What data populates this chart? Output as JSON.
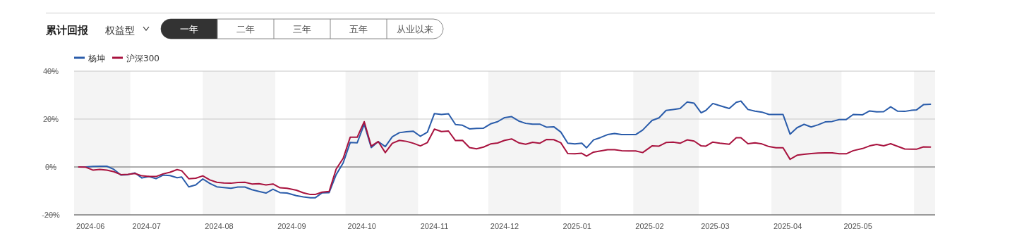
{
  "chart_data": {
    "type": "line",
    "title": "累计回报",
    "annotations": [
      "权益型",
      "一年",
      "二年",
      "三年",
      "五年",
      "从业以来"
    ],
    "x": [
      "2024-06-09",
      "2024-06-12",
      "2024-06-15",
      "2024-06-18",
      "2024-06-21",
      "2024-06-24",
      "2024-06-27",
      "2024-06-30",
      "2024-07-03",
      "2024-07-06",
      "2024-07-09",
      "2024-07-12",
      "2024-07-15",
      "2024-07-18",
      "2024-07-21",
      "2024-07-23",
      "2024-07-26",
      "2024-07-29",
      "2024-08-01",
      "2024-08-04",
      "2024-08-07",
      "2024-08-10",
      "2024-08-13",
      "2024-08-16",
      "2024-08-19",
      "2024-08-22",
      "2024-08-25",
      "2024-08-28",
      "2024-08-31",
      "2024-09-03",
      "2024-09-06",
      "2024-09-10",
      "2024-09-13",
      "2024-09-16",
      "2024-09-18",
      "2024-09-21",
      "2024-09-24",
      "2024-09-27",
      "2024-09-30",
      "2024-10-03",
      "2024-10-06",
      "2024-10-09",
      "2024-10-12",
      "2024-10-15",
      "2024-10-18",
      "2024-10-21",
      "2024-10-24",
      "2024-10-27",
      "2024-10-30",
      "2024-11-02",
      "2024-11-05",
      "2024-11-08",
      "2024-11-11",
      "2024-11-14",
      "2024-11-17",
      "2024-11-20",
      "2024-11-23",
      "2024-11-26",
      "2024-11-29",
      "2024-12-02",
      "2024-12-05",
      "2024-12-08",
      "2024-12-11",
      "2024-12-14",
      "2024-12-17",
      "2024-12-20",
      "2024-12-23",
      "2024-12-26",
      "2024-12-29",
      "2025-01-01",
      "2025-01-04",
      "2025-01-07",
      "2025-01-10",
      "2025-01-12",
      "2025-01-15",
      "2025-01-18",
      "2025-01-21",
      "2025-01-24",
      "2025-01-27",
      "2025-01-30",
      "2025-02-02",
      "2025-02-05",
      "2025-02-09",
      "2025-02-12",
      "2025-02-15",
      "2025-02-18",
      "2025-02-21",
      "2025-02-24",
      "2025-02-27",
      "2025-03-02",
      "2025-03-04",
      "2025-03-07",
      "2025-03-10",
      "2025-03-14",
      "2025-03-17",
      "2025-03-19",
      "2025-03-22",
      "2025-03-25",
      "2025-03-28",
      "2025-03-31",
      "2025-04-03",
      "2025-04-06",
      "2025-04-09",
      "2025-04-12",
      "2025-04-15",
      "2025-04-18",
      "2025-04-21",
      "2025-04-24",
      "2025-04-27",
      "2025-04-30",
      "2025-05-03",
      "2025-05-06",
      "2025-05-10",
      "2025-05-13",
      "2025-05-16",
      "2025-05-19",
      "2025-05-22",
      "2025-05-25",
      "2025-05-28",
      "2025-05-31",
      "2025-06-02",
      "2025-06-05",
      "2025-06-08"
    ],
    "series": [
      {
        "name": "杨坤",
        "color": "#2a5caa",
        "values": [
          0,
          0,
          0.2,
          0.3,
          0.3,
          -1.0,
          -3.4,
          -3.2,
          -2.5,
          -4.6,
          -4.0,
          -4.9,
          -3.4,
          -3.6,
          -4.5,
          -4.2,
          -8.3,
          -7.5,
          -5.0,
          -6.9,
          -8.3,
          -8.6,
          -8.9,
          -8.4,
          -8.4,
          -9.5,
          -10.2,
          -10.9,
          -9.3,
          -10.7,
          -10.9,
          -12.0,
          -12.5,
          -12.9,
          -12.9,
          -10.8,
          -10.7,
          -3.2,
          1.7,
          10.2,
          10.1,
          17.8,
          8.1,
          10.6,
          8.5,
          12.6,
          14.3,
          14.7,
          14.9,
          12.8,
          14.5,
          22.3,
          21.9,
          22.2,
          17.7,
          17.4,
          15.9,
          16.1,
          16.2,
          18.0,
          18.9,
          20.6,
          21.0,
          19.2,
          18.2,
          17.9,
          17.9,
          16.6,
          16.8,
          14.6,
          9.9,
          9.6,
          9.9,
          8.0,
          11.3,
          12.3,
          13.5,
          14.0,
          13.5,
          13.5,
          13.5,
          15.4,
          19.4,
          20.5,
          23.6,
          24.0,
          24.4,
          27.1,
          26.6,
          22.6,
          23.6,
          26.5,
          25.6,
          24.4,
          27.0,
          27.5,
          24.0,
          23.3,
          22.9,
          21.9,
          21.9,
          21.9,
          13.7,
          16.4,
          17.8,
          16.7,
          17.6,
          18.8,
          19.0,
          19.8,
          19.8,
          21.9,
          21.8,
          23.4,
          23.0,
          23.1,
          25.1,
          23.3,
          23.2,
          23.7,
          23.8,
          26.0,
          26.2
        ]
      },
      {
        "name": "沪深300",
        "color": "#a8123e",
        "values": [
          0,
          -0.1,
          -1.3,
          -1.0,
          -1.3,
          -2.0,
          -3.2,
          -3.1,
          -2.7,
          -3.7,
          -4.0,
          -4.0,
          -2.9,
          -2.2,
          -1.1,
          -1.6,
          -4.9,
          -4.7,
          -3.7,
          -5.4,
          -6.4,
          -6.7,
          -6.8,
          -6.5,
          -6.4,
          -7.1,
          -7.0,
          -7.5,
          -7.1,
          -8.7,
          -8.9,
          -9.7,
          -10.8,
          -11.5,
          -11.5,
          -10.5,
          -10.2,
          -0.9,
          3.6,
          12.4,
          12.4,
          18.9,
          8.7,
          10.6,
          6.0,
          9.9,
          11.1,
          10.7,
          9.9,
          8.8,
          10.2,
          15.8,
          14.8,
          15.0,
          11.0,
          11.1,
          8.1,
          7.6,
          8.3,
          9.6,
          10.0,
          11.1,
          11.7,
          10.1,
          9.5,
          10.3,
          9.9,
          11.5,
          11.4,
          10.1,
          5.6,
          5.5,
          5.7,
          4.5,
          6.2,
          6.7,
          7.2,
          7.2,
          6.8,
          6.7,
          6.7,
          6.0,
          8.8,
          8.7,
          10.2,
          10.4,
          9.9,
          11.3,
          10.8,
          8.8,
          8.7,
          10.4,
          9.9,
          9.5,
          12.2,
          12.2,
          9.7,
          10.1,
          9.6,
          8.5,
          8.0,
          8.0,
          3.2,
          4.9,
          5.3,
          5.6,
          5.8,
          5.9,
          5.9,
          5.5,
          5.5,
          6.8,
          7.7,
          8.8,
          9.4,
          8.8,
          9.7,
          8.6,
          7.5,
          7.4,
          7.4,
          8.4,
          8.3
        ]
      }
    ],
    "xlim": [
      "2024-06-07",
      "2025-06-10"
    ],
    "xticks": [
      {
        "value": "2024-06-14",
        "label": "2024-06"
      },
      {
        "value": "2024-07-08",
        "label": "2024-07"
      },
      {
        "value": "2024-08-08",
        "label": "2024-08"
      },
      {
        "value": "2024-09-08",
        "label": "2024-09"
      },
      {
        "value": "2024-10-08",
        "label": "2024-10"
      },
      {
        "value": "2024-11-08",
        "label": "2024-11"
      },
      {
        "value": "2024-12-08",
        "label": "2024-12"
      },
      {
        "value": "2025-01-08",
        "label": "2025-01"
      },
      {
        "value": "2025-02-08",
        "label": "2025-02"
      },
      {
        "value": "2025-03-08",
        "label": "2025-03"
      },
      {
        "value": "2025-04-08",
        "label": "2025-04"
      },
      {
        "value": "2025-05-08",
        "label": "2025-05"
      }
    ],
    "ylim": [
      -20,
      40
    ],
    "yticks": [
      {
        "value": -20,
        "label": "-20%"
      },
      {
        "value": 0,
        "label": "0%"
      },
      {
        "value": 20,
        "label": "20%"
      },
      {
        "value": 40,
        "label": "40%"
      }
    ],
    "bands": [
      {
        "axis": "x",
        "from": "2024-06-07",
        "to": "2024-07-01",
        "color": "#f4f4f4"
      },
      {
        "axis": "x",
        "from": "2024-08-01",
        "to": "2024-09-01",
        "color": "#f4f4f4"
      },
      {
        "axis": "x",
        "from": "2024-10-01",
        "to": "2024-11-01",
        "color": "#f4f4f4"
      },
      {
        "axis": "x",
        "from": "2024-12-01",
        "to": "2025-01-01",
        "color": "#f4f4f4"
      },
      {
        "axis": "x",
        "from": "2025-02-01",
        "to": "2025-03-01",
        "color": "#f4f4f4"
      },
      {
        "axis": "x",
        "from": "2025-04-01",
        "to": "2025-05-01",
        "color": "#f4f4f4"
      },
      {
        "axis": "x",
        "from": "2025-06-01",
        "to": "2025-06-10",
        "color": "#f4f4f4"
      }
    ],
    "ref_lines": [
      {
        "axis": "y",
        "value": 0,
        "color": "#777777"
      }
    ],
    "grid": "y",
    "legend": "top left",
    "marker": "none",
    "line_style": "solid"
  }
}
